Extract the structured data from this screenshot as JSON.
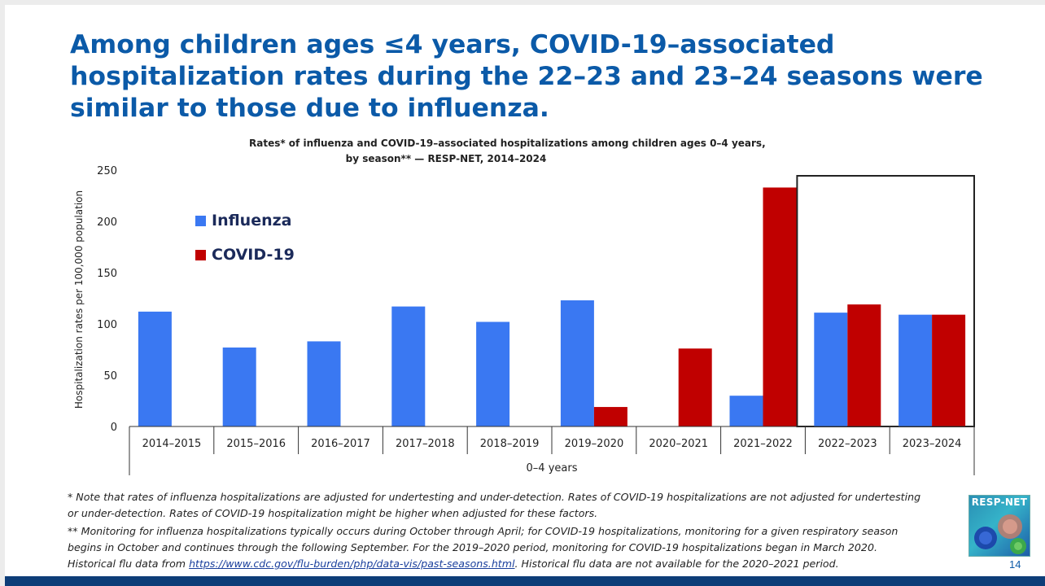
{
  "slide": {
    "title_lines": [
      "Among children ages ≤4 years, COVID-19–associated",
      "hospitalization rates during the 22–23 and 23–24 seasons were",
      "similar to those due to influenza."
    ],
    "page_number": "14",
    "logo_text": "RESP-NET"
  },
  "chart_data": {
    "type": "bar",
    "title_lines": [
      "Rates* of influenza and COVID-19–associated hospitalizations among children ages 0–4 years,",
      "by season** — RESP-NET, 2014–2024"
    ],
    "categories": [
      "2014–2015",
      "2015–2016",
      "2016–2017",
      "2017–2018",
      "2018–2019",
      "2019–2020",
      "2020–2021",
      "2021–2022",
      "2022–2023",
      "2023–2024"
    ],
    "series": [
      {
        "name": "Influenza",
        "color": "#3a78f2",
        "values": [
          112,
          77,
          83,
          117,
          102,
          123,
          null,
          30,
          111,
          109
        ]
      },
      {
        "name": "COVID-19",
        "color": "#c00000",
        "values": [
          null,
          null,
          null,
          null,
          null,
          19,
          76,
          233,
          119,
          109
        ]
      }
    ],
    "xlabel": "0–4 years",
    "ylabel": "Hospitalization rates per 100,000 population",
    "ylim": [
      0,
      250
    ],
    "yticks": [
      0,
      50,
      100,
      150,
      200,
      250
    ],
    "legend_position": "top-left",
    "highlight_categories": [
      "2022–2023",
      "2023–2024"
    ],
    "grid": false
  },
  "notes": {
    "note1": [
      "* Note that rates of influenza hospitalizations are adjusted for undertesting and under-detection. Rates of COVID-19 hospitalizations are not adjusted for undertesting",
      "or under-detection. Rates of COVID-19 hospitalization might be higher when adjusted for these factors."
    ],
    "note2": [
      "** Monitoring for influenza hospitalizations typically occurs during October through April; for COVID-19 hospitalizations, monitoring for a given respiratory season",
      "begins in October and continues through the following September. For the 2019–2020 period, monitoring for COVID-19 hospitalizations began in March 2020."
    ],
    "note3_prefix": "Historical flu data from ",
    "note3_link": "https://www.cdc.gov/flu-burden/php/data-vis/past-seasons.html",
    "note3_suffix": ". Historical flu data are not available for the 2020–2021 period."
  }
}
